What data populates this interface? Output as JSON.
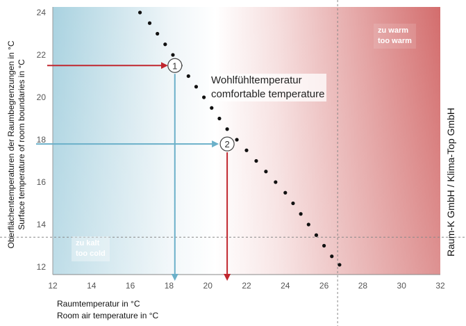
{
  "chart_data": {
    "type": "scatter",
    "xlabel": [
      "Raumtemperatur in °C",
      "Room air temperature in °C"
    ],
    "ylabel": [
      "Oberflächentemperaturen der Raumbegrenzungen in °C",
      "Surface temperature of room boundaries in °C"
    ],
    "xlim": [
      12,
      32
    ],
    "ylim": [
      12,
      24
    ],
    "xticks": [
      "12",
      "14",
      "16",
      "18",
      "20",
      "22",
      "24",
      "26",
      "28",
      "30",
      "32"
    ],
    "yticks": [
      "12",
      "14",
      "16",
      "18",
      "20",
      "22",
      "24"
    ],
    "grid": false,
    "comfort_line": {
      "label": [
        "Wohlfühltemperatur",
        "comfortable temperature"
      ],
      "style": "dotted",
      "points": [
        {
          "x": 16.5,
          "y": 24.0
        },
        {
          "x": 17.0,
          "y": 23.5
        },
        {
          "x": 17.4,
          "y": 23.0
        },
        {
          "x": 17.8,
          "y": 22.5
        },
        {
          "x": 18.2,
          "y": 22.0
        },
        {
          "x": 18.6,
          "y": 21.5
        },
        {
          "x": 19.0,
          "y": 21.0
        },
        {
          "x": 19.4,
          "y": 20.5
        },
        {
          "x": 19.8,
          "y": 20.0
        },
        {
          "x": 20.2,
          "y": 19.5
        },
        {
          "x": 20.6,
          "y": 19.0
        },
        {
          "x": 21.0,
          "y": 18.5
        },
        {
          "x": 21.5,
          "y": 18.0
        },
        {
          "x": 22.0,
          "y": 17.5
        },
        {
          "x": 22.5,
          "y": 17.0
        },
        {
          "x": 23.0,
          "y": 16.5
        },
        {
          "x": 23.5,
          "y": 16.0
        },
        {
          "x": 24.0,
          "y": 15.5
        },
        {
          "x": 24.4,
          "y": 15.0
        },
        {
          "x": 24.8,
          "y": 14.5
        },
        {
          "x": 25.2,
          "y": 14.0
        },
        {
          "x": 25.6,
          "y": 13.5
        },
        {
          "x": 26.0,
          "y": 13.0
        },
        {
          "x": 26.4,
          "y": 12.5
        },
        {
          "x": 26.8,
          "y": 12.1
        }
      ]
    },
    "markers": [
      {
        "label": "1",
        "x": 18.3,
        "y": 21.5
      },
      {
        "label": "2",
        "x": 21.0,
        "y": 17.8
      }
    ],
    "zones": [
      {
        "label": [
          "zu warm",
          "too warm"
        ],
        "color": "#cf5f5f"
      },
      {
        "label": [
          "zu kalt",
          "too cold"
        ],
        "color": "#8fc3d4"
      }
    ],
    "reference_lines": {
      "x": 26.7,
      "y": 13.4
    },
    "credit": "Raum-K GmbH / Klima-Top GmbH",
    "colors": {
      "red_arrow": "#c0262e",
      "blue_arrow": "#6bb0c9",
      "dots": "#111111"
    }
  }
}
